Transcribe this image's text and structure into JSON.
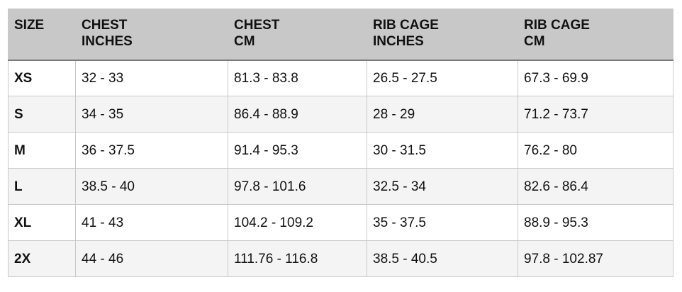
{
  "table": {
    "headers": [
      {
        "line1": "SIZE",
        "line2": ""
      },
      {
        "line1": "CHEST",
        "line2": "INCHES"
      },
      {
        "line1": "CHEST",
        "line2": "CM"
      },
      {
        "line1": "RIB CAGE",
        "line2": "INCHES"
      },
      {
        "line1": "RIB CAGE",
        "line2": "CM"
      }
    ],
    "rows": [
      [
        "XS",
        "32 - 33",
        "81.3 - 83.8",
        "26.5 - 27.5",
        "67.3 - 69.9"
      ],
      [
        "S",
        "34 - 35",
        "86.4 - 88.9",
        "28 - 29",
        "71.2 - 73.7"
      ],
      [
        "M",
        "36 - 37.5",
        "91.4 - 95.3",
        "30 - 31.5",
        "76.2 - 80"
      ],
      [
        "L",
        "38.5 - 40",
        "97.8 - 101.6",
        "32.5 - 34",
        "82.6 - 86.4"
      ],
      [
        "XL",
        "41 - 43",
        "104.2 - 109.2",
        "35 - 37.5",
        "88.9 - 95.3"
      ],
      [
        "2X",
        "44 - 46",
        "111.76 - 116.8",
        "38.5 - 40.5",
        "97.8 - 102.87"
      ]
    ]
  }
}
